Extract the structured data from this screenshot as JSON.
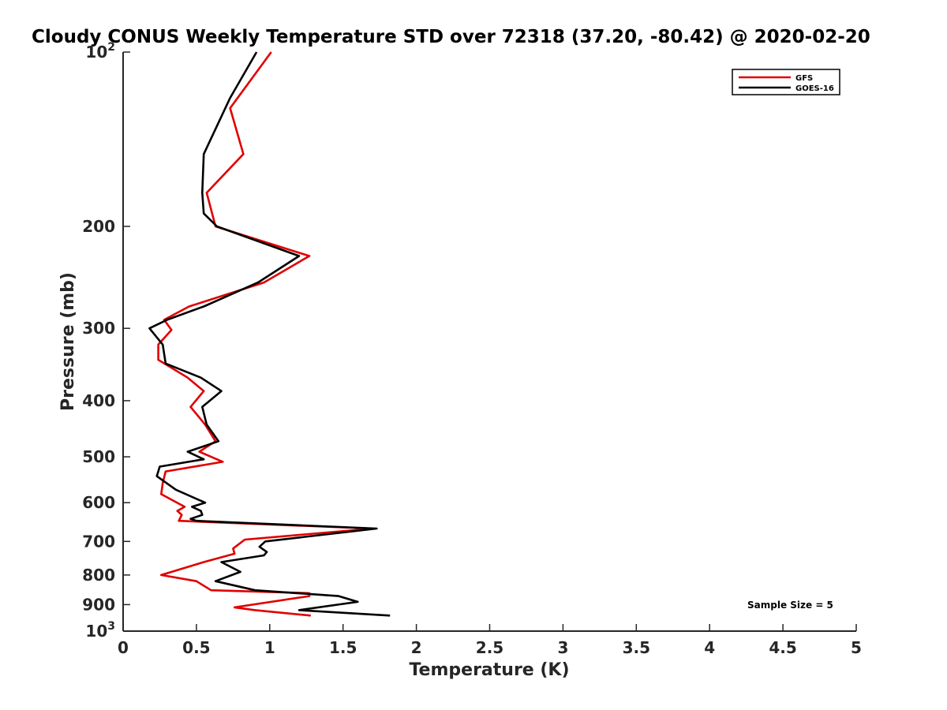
{
  "chart_data": {
    "type": "line",
    "title": "Cloudy CONUS Weekly Temperature STD over 72318 (37.20, -80.42) @ 2020-02-20",
    "xlabel": "Temperature (K)",
    "ylabel": "Pressure (mb)",
    "xlim": [
      0,
      5
    ],
    "ylim": [
      100,
      1000
    ],
    "y_scale": "log",
    "y_reversed": true,
    "x_ticks": [
      0,
      0.5,
      1,
      1.5,
      2,
      2.5,
      3,
      3.5,
      4,
      4.5,
      5
    ],
    "x_tick_labels": [
      "0",
      "0.5",
      "1",
      "1.5",
      "2",
      "2.5",
      "3",
      "3.5",
      "4",
      "4.5",
      "5"
    ],
    "y_ticks": [
      100,
      200,
      300,
      400,
      500,
      600,
      700,
      800,
      900,
      1000
    ],
    "y_tick_labels": [
      {
        "base": "10",
        "exp": "2"
      },
      {
        "base": "200",
        "exp": ""
      },
      {
        "base": "300",
        "exp": ""
      },
      {
        "base": "400",
        "exp": ""
      },
      {
        "base": "500",
        "exp": ""
      },
      {
        "base": "600",
        "exp": ""
      },
      {
        "base": "700",
        "exp": ""
      },
      {
        "base": "800",
        "exp": ""
      },
      {
        "base": "900",
        "exp": ""
      },
      {
        "base": "10",
        "exp": "3"
      }
    ],
    "grid": false,
    "legend_position": "top-right",
    "annotation": "Sample Size = 5",
    "series": [
      {
        "name": "GFS",
        "color": "#e00000",
        "points": [
          [
            1.01,
            100
          ],
          [
            0.73,
            125
          ],
          [
            0.82,
            150
          ],
          [
            0.57,
            175
          ],
          [
            0.63,
            200
          ],
          [
            1.27,
            225
          ],
          [
            0.96,
            250
          ],
          [
            0.45,
            275
          ],
          [
            0.28,
            290
          ],
          [
            0.33,
            302
          ],
          [
            0.24,
            320
          ],
          [
            0.24,
            340
          ],
          [
            0.44,
            365
          ],
          [
            0.55,
            385
          ],
          [
            0.46,
            410
          ],
          [
            0.56,
            440
          ],
          [
            0.63,
            470
          ],
          [
            0.52,
            490
          ],
          [
            0.68,
            510
          ],
          [
            0.29,
            530
          ],
          [
            0.27,
            555
          ],
          [
            0.26,
            580
          ],
          [
            0.42,
            610
          ],
          [
            0.37,
            620
          ],
          [
            0.4,
            630
          ],
          [
            0.38,
            645
          ],
          [
            1.7,
            665
          ],
          [
            0.83,
            695
          ],
          [
            0.75,
            720
          ],
          [
            0.76,
            735
          ],
          [
            0.55,
            760
          ],
          [
            0.26,
            800
          ],
          [
            0.5,
            820
          ],
          [
            0.6,
            850
          ],
          [
            1.27,
            860
          ],
          [
            1.27,
            870
          ],
          [
            0.76,
            910
          ],
          [
            0.9,
            920
          ],
          [
            1.28,
            940
          ]
        ]
      },
      {
        "name": "GOES-16",
        "color": "#000000",
        "points": [
          [
            0.91,
            100
          ],
          [
            0.73,
            120
          ],
          [
            0.55,
            150
          ],
          [
            0.54,
            175
          ],
          [
            0.55,
            190
          ],
          [
            0.64,
            200
          ],
          [
            1.2,
            225
          ],
          [
            0.92,
            250
          ],
          [
            0.55,
            275
          ],
          [
            0.3,
            290
          ],
          [
            0.18,
            300
          ],
          [
            0.27,
            320
          ],
          [
            0.29,
            345
          ],
          [
            0.53,
            365
          ],
          [
            0.67,
            385
          ],
          [
            0.54,
            410
          ],
          [
            0.57,
            440
          ],
          [
            0.65,
            470
          ],
          [
            0.44,
            490
          ],
          [
            0.55,
            505
          ],
          [
            0.25,
            520
          ],
          [
            0.23,
            540
          ],
          [
            0.36,
            570
          ],
          [
            0.56,
            600
          ],
          [
            0.47,
            610
          ],
          [
            0.53,
            620
          ],
          [
            0.54,
            630
          ],
          [
            0.46,
            640
          ],
          [
            0.5,
            645
          ],
          [
            1.73,
            665
          ],
          [
            0.97,
            700
          ],
          [
            0.93,
            715
          ],
          [
            0.98,
            730
          ],
          [
            0.96,
            740
          ],
          [
            0.67,
            760
          ],
          [
            0.8,
            790
          ],
          [
            0.63,
            820
          ],
          [
            0.9,
            850
          ],
          [
            1.47,
            870
          ],
          [
            1.6,
            890
          ],
          [
            1.2,
            920
          ],
          [
            1.82,
            940
          ]
        ]
      }
    ]
  }
}
